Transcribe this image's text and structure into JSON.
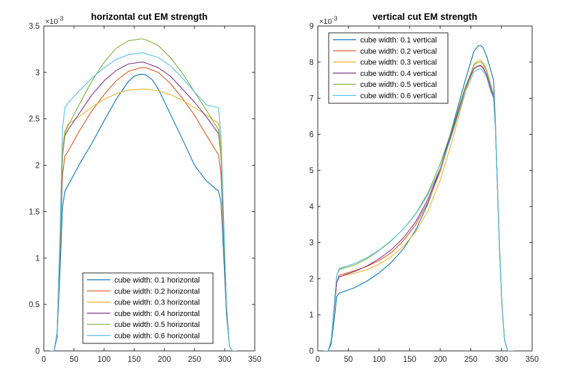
{
  "chart_data": [
    {
      "type": "line",
      "title": "horizontal cut EM strength",
      "xlim": [
        0,
        350
      ],
      "ylim": [
        0,
        0.0035
      ],
      "x_ticks": [
        "0",
        "50",
        "100",
        "150",
        "200",
        "250",
        "300",
        "350"
      ],
      "y_ticks": [
        "0",
        "0.5",
        "1",
        "1.5",
        "2",
        "2.5",
        "3",
        "3.5"
      ],
      "y_exponent_label": "×10",
      "y_exponent_power": "-3",
      "grid": false,
      "legend_position": "bottom-center",
      "series": [
        {
          "name": "cube width: 0.1 horizontal",
          "color": "#0072BD",
          "x": [
            10,
            17,
            22,
            27,
            31,
            35,
            40,
            60,
            80,
            100,
            120,
            140,
            150,
            160,
            165,
            170,
            180,
            190,
            210,
            230,
            250,
            270,
            290,
            294,
            298,
            303,
            308,
            313,
            320
          ],
          "y": [
            0,
            0,
            0.00015,
            0.0009,
            0.00155,
            0.00172,
            0.00178,
            0.00202,
            0.00224,
            0.00248,
            0.00271,
            0.0029,
            0.00296,
            0.00298,
            0.00298,
            0.00297,
            0.00292,
            0.00282,
            0.00255,
            0.00228,
            0.002,
            0.00183,
            0.00172,
            0.0016,
            0.0011,
            0.0004,
            5e-05,
            0,
            0
          ]
        },
        {
          "name": "cube width: 0.2 horizontal",
          "color": "#D95319",
          "x": [
            10,
            17,
            22,
            27,
            31,
            35,
            40,
            60,
            80,
            100,
            120,
            140,
            160,
            165,
            170,
            190,
            210,
            230,
            250,
            270,
            290,
            294,
            298,
            303,
            308,
            313,
            320
          ],
          "y": [
            0,
            0,
            0.00018,
            0.0011,
            0.0019,
            0.0021,
            0.00215,
            0.00238,
            0.00259,
            0.00276,
            0.00291,
            0.00301,
            0.00305,
            0.00305,
            0.00305,
            0.003,
            0.00288,
            0.00272,
            0.00254,
            0.00232,
            0.00211,
            0.0019,
            0.0013,
            0.00045,
            5e-05,
            0,
            0
          ]
        },
        {
          "name": "cube width: 0.3 horizontal",
          "color": "#EDB120",
          "x": [
            10,
            17,
            22,
            27,
            31,
            35,
            40,
            60,
            80,
            100,
            120,
            140,
            160,
            165,
            170,
            190,
            210,
            230,
            250,
            270,
            290,
            294,
            298,
            303,
            308,
            313,
            320
          ],
          "y": [
            0,
            0,
            0.0002,
            0.0012,
            0.0022,
            0.00237,
            0.00244,
            0.00253,
            0.00263,
            0.00271,
            0.00277,
            0.00281,
            0.00282,
            0.00282,
            0.00282,
            0.0028,
            0.00276,
            0.0027,
            0.00262,
            0.00254,
            0.00245,
            0.0022,
            0.0015,
            0.0005,
            5e-05,
            0,
            0
          ]
        },
        {
          "name": "cube width: 0.4 horizontal",
          "color": "#7E2F8E",
          "x": [
            10,
            17,
            22,
            27,
            31,
            35,
            40,
            60,
            80,
            100,
            120,
            140,
            160,
            165,
            170,
            190,
            210,
            230,
            250,
            270,
            290,
            294,
            298,
            303,
            308,
            313,
            320
          ],
          "y": [
            0,
            0,
            0.0002,
            0.0012,
            0.0021,
            0.00232,
            0.00238,
            0.00257,
            0.00276,
            0.00291,
            0.00302,
            0.00309,
            0.00311,
            0.00311,
            0.0031,
            0.00305,
            0.00296,
            0.00282,
            0.00268,
            0.00252,
            0.00234,
            0.0021,
            0.0014,
            0.0005,
            5e-05,
            0,
            0
          ]
        },
        {
          "name": "cube width: 0.5 horizontal",
          "color": "#77AC30",
          "x": [
            10,
            17,
            22,
            27,
            31,
            35,
            40,
            60,
            80,
            100,
            120,
            140,
            160,
            165,
            170,
            190,
            210,
            230,
            250,
            270,
            290,
            294,
            298,
            303,
            308,
            313,
            320
          ],
          "y": [
            0,
            0,
            0.0002,
            0.0012,
            0.0021,
            0.00235,
            0.00242,
            0.00267,
            0.00291,
            0.00311,
            0.00326,
            0.00334,
            0.00336,
            0.00336,
            0.00335,
            0.00329,
            0.00316,
            0.00299,
            0.00279,
            0.00259,
            0.00238,
            0.0021,
            0.0014,
            0.0005,
            5e-05,
            0,
            0
          ]
        },
        {
          "name": "cube width: 0.6 horizontal",
          "color": "#4DBEEE",
          "x": [
            10,
            17,
            22,
            27,
            31,
            35,
            40,
            60,
            80,
            100,
            120,
            140,
            160,
            165,
            170,
            190,
            210,
            230,
            250,
            270,
            290,
            294,
            298,
            303,
            308,
            313,
            320
          ],
          "y": [
            0,
            0,
            0.0002,
            0.0013,
            0.0024,
            0.00262,
            0.00267,
            0.00281,
            0.00294,
            0.00305,
            0.00314,
            0.00319,
            0.00321,
            0.00321,
            0.0032,
            0.00316,
            0.00307,
            0.00294,
            0.00279,
            0.00265,
            0.00262,
            0.0023,
            0.0015,
            0.0005,
            5e-05,
            0,
            0
          ]
        }
      ]
    },
    {
      "type": "line",
      "title": "vertical cut EM strength",
      "xlim": [
        0,
        350
      ],
      "ylim": [
        0,
        0.009
      ],
      "x_ticks": [
        "0",
        "50",
        "100",
        "150",
        "200",
        "250",
        "300",
        "350"
      ],
      "y_ticks": [
        "0",
        "1",
        "2",
        "3",
        "4",
        "5",
        "6",
        "7",
        "8",
        "9"
      ],
      "y_exponent_label": "×10",
      "y_exponent_power": "-3",
      "grid": false,
      "legend_position": "top-left",
      "series": [
        {
          "name": "cube width: 0.1 vertical",
          "color": "#0072BD",
          "x": [
            10,
            17,
            22,
            27,
            31,
            35,
            40,
            60,
            80,
            100,
            120,
            140,
            160,
            180,
            200,
            220,
            240,
            255,
            262,
            266,
            270,
            276,
            282,
            287,
            290,
            293,
            297,
            301,
            305,
            310,
            320
          ],
          "y": [
            0,
            0,
            0.0002,
            0.0009,
            0.0015,
            0.0016,
            0.00163,
            0.00175,
            0.00193,
            0.00216,
            0.00245,
            0.00283,
            0.00335,
            0.00408,
            0.00505,
            0.00622,
            0.00745,
            0.0083,
            0.00845,
            0.00846,
            0.0084,
            0.00815,
            0.0078,
            0.0075,
            0.0064,
            0.0048,
            0.0028,
            0.0012,
            0.0003,
            0,
            0
          ]
        },
        {
          "name": "cube width: 0.2 vertical",
          "color": "#D95319",
          "x": [
            10,
            17,
            22,
            27,
            31,
            35,
            40,
            60,
            80,
            100,
            120,
            140,
            160,
            180,
            200,
            220,
            240,
            255,
            262,
            266,
            270,
            276,
            282,
            287,
            290,
            293,
            297,
            301,
            305,
            310,
            320
          ],
          "y": [
            0,
            0,
            0.0003,
            0.0012,
            0.0019,
            0.0021,
            0.00212,
            0.00222,
            0.00234,
            0.0025,
            0.00272,
            0.00305,
            0.0035,
            0.00412,
            0.00498,
            0.00607,
            0.00722,
            0.00783,
            0.0079,
            0.00791,
            0.00785,
            0.00765,
            0.0073,
            0.007,
            0.0062,
            0.0047,
            0.0027,
            0.0012,
            0.0003,
            0,
            0
          ]
        },
        {
          "name": "cube width: 0.3 vertical",
          "color": "#EDB120",
          "x": [
            10,
            17,
            22,
            27,
            31,
            35,
            40,
            60,
            80,
            100,
            120,
            140,
            160,
            180,
            200,
            220,
            240,
            255,
            262,
            266,
            270,
            276,
            282,
            287,
            290,
            293,
            297,
            301,
            305,
            310,
            320
          ],
          "y": [
            0,
            0,
            0.0003,
            0.0012,
            0.0019,
            0.00205,
            0.00208,
            0.00215,
            0.00225,
            0.0024,
            0.00261,
            0.0029,
            0.0033,
            0.00388,
            0.00473,
            0.00585,
            0.0071,
            0.00795,
            0.00805,
            0.00806,
            0.00798,
            0.00778,
            0.0074,
            0.0071,
            0.0063,
            0.0048,
            0.0027,
            0.0012,
            0.0003,
            0,
            0
          ]
        },
        {
          "name": "cube width: 0.4 vertical",
          "color": "#7E2F8E",
          "x": [
            10,
            17,
            22,
            27,
            31,
            35,
            40,
            60,
            80,
            100,
            120,
            140,
            160,
            180,
            200,
            220,
            240,
            255,
            262,
            266,
            270,
            276,
            282,
            287,
            290,
            293,
            297,
            301,
            305,
            310,
            320
          ],
          "y": [
            0,
            0,
            0.0003,
            0.0012,
            0.0019,
            0.00205,
            0.00208,
            0.0022,
            0.00235,
            0.00255,
            0.0028,
            0.00313,
            0.00358,
            0.0042,
            0.00505,
            0.00612,
            0.00725,
            0.00782,
            0.00789,
            0.0079,
            0.00783,
            0.00763,
            0.0073,
            0.007,
            0.0062,
            0.0047,
            0.0027,
            0.0012,
            0.0003,
            0,
            0
          ]
        },
        {
          "name": "cube width: 0.5 vertical",
          "color": "#77AC30",
          "x": [
            10,
            17,
            22,
            27,
            31,
            35,
            40,
            60,
            80,
            100,
            120,
            140,
            160,
            180,
            200,
            220,
            240,
            255,
            262,
            266,
            270,
            276,
            282,
            287,
            290,
            293,
            297,
            301,
            305,
            310,
            320
          ],
          "y": [
            0,
            0,
            0.0003,
            0.0013,
            0.0021,
            0.00225,
            0.00228,
            0.00238,
            0.00255,
            0.00278,
            0.00305,
            0.00338,
            0.0038,
            0.00438,
            0.00518,
            0.00618,
            0.00727,
            0.00792,
            0.008,
            0.00801,
            0.00794,
            0.00774,
            0.0074,
            0.0071,
            0.0063,
            0.0048,
            0.0027,
            0.0012,
            0.0003,
            0,
            0
          ]
        },
        {
          "name": "cube width: 0.6 vertical",
          "color": "#4DBEEE",
          "x": [
            10,
            17,
            22,
            27,
            31,
            35,
            40,
            60,
            80,
            100,
            120,
            140,
            160,
            180,
            200,
            220,
            240,
            255,
            262,
            266,
            270,
            276,
            282,
            287,
            290,
            293,
            297,
            301,
            305,
            310,
            320
          ],
          "y": [
            0,
            0,
            0.0003,
            0.0013,
            0.0021,
            0.00228,
            0.00231,
            0.00242,
            0.00258,
            0.00279,
            0.00306,
            0.00338,
            0.00379,
            0.00433,
            0.00506,
            0.00603,
            0.00713,
            0.00773,
            0.0078,
            0.00781,
            0.00775,
            0.00757,
            0.0072,
            0.007,
            0.0062,
            0.0047,
            0.0027,
            0.0012,
            0.0003,
            0,
            0
          ]
        }
      ]
    }
  ]
}
